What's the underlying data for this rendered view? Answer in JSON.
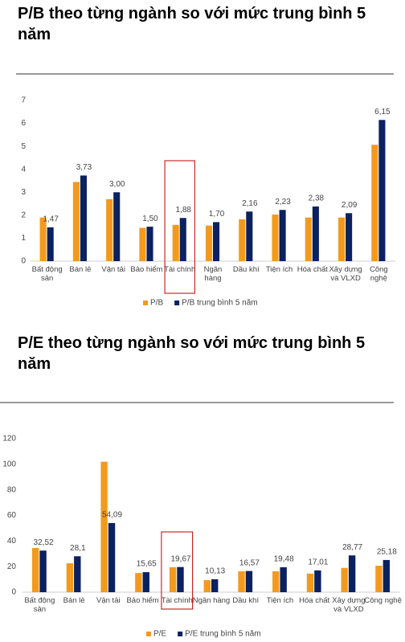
{
  "chart_data": [
    {
      "type": "bar",
      "title": "P/B theo từng ngành so với mức trung bình 5 năm",
      "categories": [
        "Bất động sản",
        "Bán lẻ",
        "Vận tải",
        "Bảo hiểm",
        "Tài chính",
        "Ngân hàng",
        "Dầu khí",
        "Tiện ích",
        "Hóa chất",
        "Xây dựng và VLXD",
        "Công nghệ"
      ],
      "series": [
        {
          "name": "P/B",
          "color": "#f39a1e",
          "values": [
            1.9,
            3.45,
            2.7,
            1.45,
            1.58,
            1.55,
            1.82,
            2.03,
            1.9,
            1.9,
            5.07
          ]
        },
        {
          "name": "P/B trung bình 5 năm",
          "color": "#0b2160",
          "values": [
            1.47,
            3.73,
            3.0,
            1.5,
            1.88,
            1.7,
            2.16,
            2.23,
            2.38,
            2.09,
            6.15
          ],
          "value_labels": [
            "1,47",
            "3,73",
            "3,00",
            "1,50",
            "1,88",
            "1,70",
            "2,16",
            "2,23",
            "2,38",
            "2,09",
            "6,15"
          ]
        }
      ],
      "ylim": [
        0,
        7
      ],
      "yticks": [
        0,
        1,
        2,
        3,
        4,
        5,
        6,
        7
      ],
      "grid": false,
      "legend": "bottom"
    },
    {
      "type": "bar",
      "title": "P/E theo từng ngành so với mức trung bình 5 năm",
      "categories": [
        "Bất động sản",
        "Bán lẻ",
        "Vận tải",
        "Bảo hiểm",
        "Tài chính",
        "Ngân hàng",
        "Dầu khí",
        "Tiện ích",
        "Hóa chất",
        "Xây dựng và VLXD",
        "Công nghệ"
      ],
      "series": [
        {
          "name": "P/E",
          "color": "#f39a1e",
          "values": [
            34.6,
            22.6,
            102,
            15,
            19.5,
            9.4,
            16.3,
            16.3,
            14.5,
            19,
            20.7
          ]
        },
        {
          "name": "P/E trung bình 5 năm",
          "color": "#0b2160",
          "values": [
            32.52,
            28.1,
            54.09,
            15.65,
            19.67,
            10.13,
            16.57,
            19.48,
            17.01,
            28.77,
            25.18
          ],
          "value_labels": [
            "32,52",
            "28,1",
            "54,09",
            "15,65",
            "19,67",
            "10,13",
            "16,57",
            "19,48",
            "17,01",
            "28,77",
            "25,18"
          ]
        }
      ],
      "ylim": [
        0,
        120
      ],
      "yticks": [
        0,
        20,
        40,
        60,
        80,
        100,
        120
      ],
      "grid": false,
      "legend": "bottom"
    }
  ]
}
